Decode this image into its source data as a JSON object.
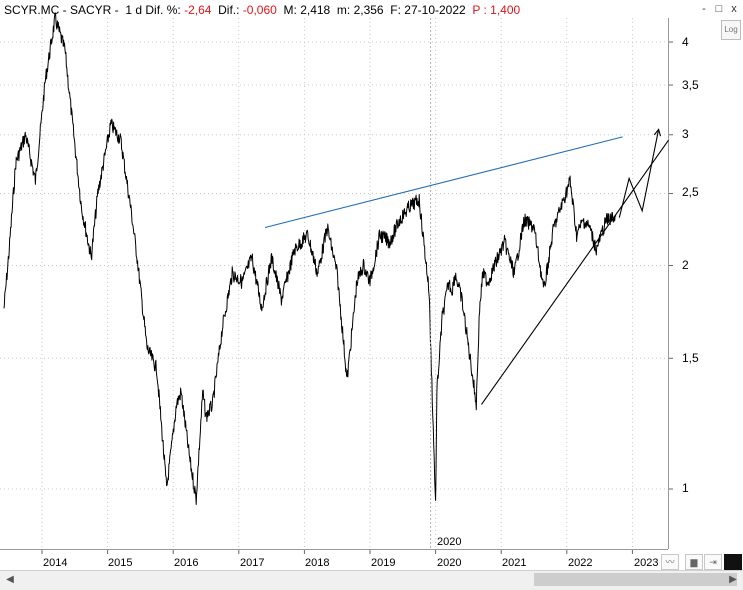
{
  "header": {
    "symbol": "SCYR.MC - SACYR -",
    "period": "1 d",
    "change_pct_label": "Dif. %:",
    "change_pct": "-2,64",
    "change_label": "Dif.:",
    "change": "-0,060",
    "high_label": "M:",
    "high": "2,418",
    "low_label": "m:",
    "low": "2,356",
    "date_label": "F:",
    "date": "27-10-2022",
    "price_label": "P :",
    "price": "1,400"
  },
  "toolbar": {
    "minimize": "-",
    "restore": "□",
    "close": "x",
    "log_button": "Log"
  },
  "bottom_controls": {
    "icon1": "chart-toggle-icon",
    "icon2": "save-icon",
    "icon3": "arrow-icon"
  },
  "colors": {
    "price": "#000000",
    "resistance_line": "#1f6fb5",
    "support_line": "#000000",
    "negative": "#e0161b",
    "grid": "#c8c8c8"
  },
  "chart_data": {
    "type": "line",
    "title": "SCYR.MC - SACYR",
    "xlabel": "",
    "ylabel": "",
    "log_scale": true,
    "grid": true,
    "ylim": [
      0.9,
      4.7
    ],
    "xlim": [
      2013.4,
      2023.55
    ],
    "y_ticks": [
      "4",
      "3,5",
      "3",
      "2,5",
      "2",
      "1,5",
      "1"
    ],
    "x_ticks": [
      "2014",
      "2015",
      "2016",
      "2017",
      "2018",
      "2019",
      "2020",
      "2021",
      "2022",
      "2023"
    ],
    "highlight_label": "2020",
    "series": [
      {
        "x": [
          2013.42,
          2013.5,
          2013.6,
          2013.75,
          2013.9,
          2014.05,
          2014.2,
          2014.35,
          2014.45,
          2014.6,
          2014.75,
          2014.85,
          2015.05,
          2015.2,
          2015.35,
          2015.45,
          2015.6,
          2015.75,
          2015.9,
          2016.05,
          2016.12,
          2016.25,
          2016.35,
          2016.45,
          2016.5,
          2016.6,
          2016.75,
          2016.9,
          2017.05,
          2017.2,
          2017.35,
          2017.5,
          2017.65,
          2017.85,
          2018.05,
          2018.2,
          2018.35,
          2018.5,
          2018.65,
          2018.8,
          2018.9,
          2019.0,
          2019.15,
          2019.3,
          2019.45,
          2019.6,
          2019.75,
          2019.9,
          2020.0,
          2020.02,
          2020.1,
          2020.2,
          2020.25,
          2020.3,
          2020.4,
          2020.55,
          2020.62,
          2020.67,
          2020.72,
          2020.8,
          2020.9,
          2021.05,
          2021.2,
          2021.35,
          2021.5,
          2021.65,
          2021.8,
          2021.95,
          2022.05,
          2022.15,
          2022.25,
          2022.35,
          2022.45,
          2022.6,
          2022.75
        ],
        "values": [
          1.75,
          2.1,
          2.75,
          3.0,
          2.6,
          3.55,
          4.3,
          3.9,
          3.2,
          2.4,
          2.05,
          2.5,
          3.1,
          2.95,
          2.4,
          2.05,
          1.55,
          1.45,
          1.0,
          1.3,
          1.35,
          1.1,
          0.97,
          1.35,
          1.25,
          1.3,
          1.65,
          1.95,
          1.9,
          2.05,
          1.75,
          2.05,
          1.8,
          2.1,
          2.2,
          1.95,
          2.25,
          1.95,
          1.4,
          1.9,
          2.0,
          1.9,
          2.2,
          2.15,
          2.3,
          2.4,
          2.45,
          1.85,
          0.95,
          1.35,
          1.7,
          1.9,
          1.85,
          1.95,
          1.8,
          1.45,
          1.3,
          1.75,
          1.95,
          1.9,
          2.0,
          2.15,
          1.95,
          2.3,
          2.25,
          1.85,
          2.25,
          2.45,
          2.6,
          2.2,
          2.3,
          2.25,
          2.1,
          2.3,
          2.33
        ]
      }
    ],
    "trendlines": [
      {
        "name": "resistance",
        "x": [
          2017.4,
          2022.85
        ],
        "values": [
          2.25,
          2.98
        ]
      },
      {
        "name": "support",
        "x": [
          2020.7,
          2023.55
        ],
        "values": [
          1.3,
          2.95
        ]
      },
      {
        "name": "projection",
        "x": [
          2022.8,
          2022.95,
          2023.15,
          2023.4
        ],
        "values": [
          2.32,
          2.62,
          2.37,
          3.05
        ]
      }
    ]
  }
}
